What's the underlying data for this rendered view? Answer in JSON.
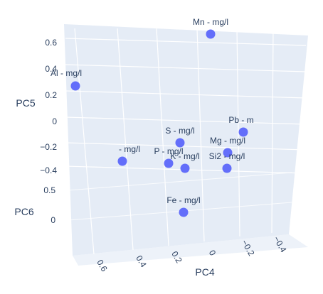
{
  "chart_data": {
    "type": "scatter",
    "title": "",
    "marker_color": "#636efa",
    "pane_color": "#e5ecf6",
    "grid_color": "#ffffff",
    "text_color": "#2a3f5f",
    "axes": {
      "x": {
        "title": "PC4",
        "ticks": [
          "0.6",
          "0.4",
          "0.2",
          "0",
          "−0.2",
          "−0.4"
        ]
      },
      "y": {
        "title": "PC5",
        "ticks": [
          "0.6",
          "0.4",
          "0.2",
          "0",
          "−0.2",
          "−0.4"
        ]
      },
      "z": {
        "title": "PC6",
        "ticks": [
          "0.5",
          "0"
        ]
      }
    },
    "points": [
      {
        "label": "Mn - mg/l",
        "pc4": 0.0,
        "pc5": 0.9,
        "pc6": 0.4
      },
      {
        "label": "Al - mg/l",
        "pc4": 0.72,
        "pc5": 0.3,
        "pc6": 0.3
      },
      {
        "label": "Pb - mg/l",
        "pc4": -0.22,
        "pc5": 0.1,
        "pc6": 0.2
      },
      {
        "label": "S - mg/l",
        "pc4": 0.22,
        "pc5": -0.05,
        "pc6": 0.15
      },
      {
        "label": "Mg - mg/l",
        "pc4": -0.12,
        "pc5": -0.15,
        "pc6": 0.15
      },
      {
        "label": "Si2 - mg/l",
        "pc4": -0.12,
        "pc5": -0.32,
        "pc6": 0.0
      },
      {
        "label": "K - mg/l",
        "pc4": 0.18,
        "pc5": -0.4,
        "pc6": 0.0
      },
      {
        "label": "P - mg/l",
        "pc4": 0.25,
        "pc5": -0.3,
        "pc6": 0.05
      },
      {
        "label": "Cd - mg/l",
        "pc4": 0.58,
        "pc5": -0.35,
        "pc6": 0.1
      },
      {
        "label": "Fe - mg/l",
        "pc4": 0.25,
        "pc5": -0.4,
        "pc6": -0.3
      }
    ],
    "rendered_labels": [
      "Mn - mg/l",
      "Al - mg/l",
      "Pb - m",
      "S - mg/l",
      "Mg - mg/l",
      "Si2 - mg/l",
      "K - mg/l",
      "P - mg/l",
      "- mg/l",
      "Fe - mg/l"
    ]
  }
}
